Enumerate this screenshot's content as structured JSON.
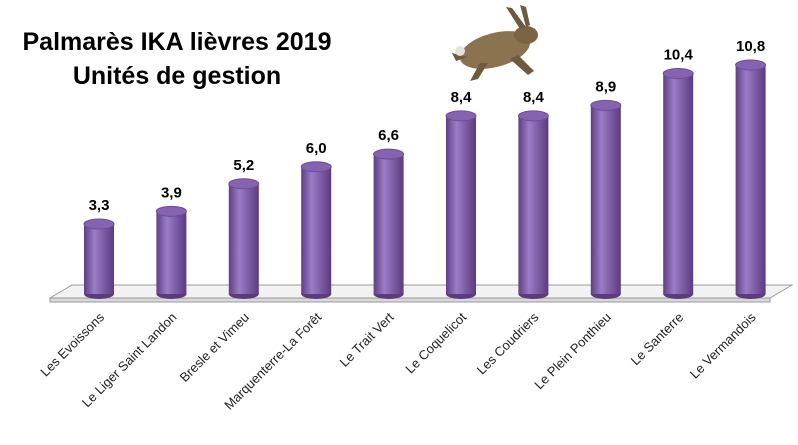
{
  "chart_data": {
    "type": "bar",
    "title": "Palmarès IKA lièvres 2019",
    "subtitle": "Unités de gestion",
    "categories": [
      "Les Evoissons",
      "Le Liger Saint Landon",
      "Bresle et Vimeu",
      "Marquenterre-La Forêt",
      "Le Trait Vert",
      "Le Coquelicot",
      "Les Coudriers",
      "Le Plein Ponthieu",
      "Le Santerre",
      "Le Vermandois"
    ],
    "values": [
      3.3,
      3.9,
      5.2,
      6.0,
      6.6,
      8.4,
      8.4,
      8.9,
      10.4,
      10.8
    ],
    "value_labels": [
      "3,3",
      "3,9",
      "5,2",
      "6,0",
      "6,6",
      "8,4",
      "8,4",
      "8,9",
      "10,4",
      "10,8"
    ],
    "color": "#8663b0"
  }
}
